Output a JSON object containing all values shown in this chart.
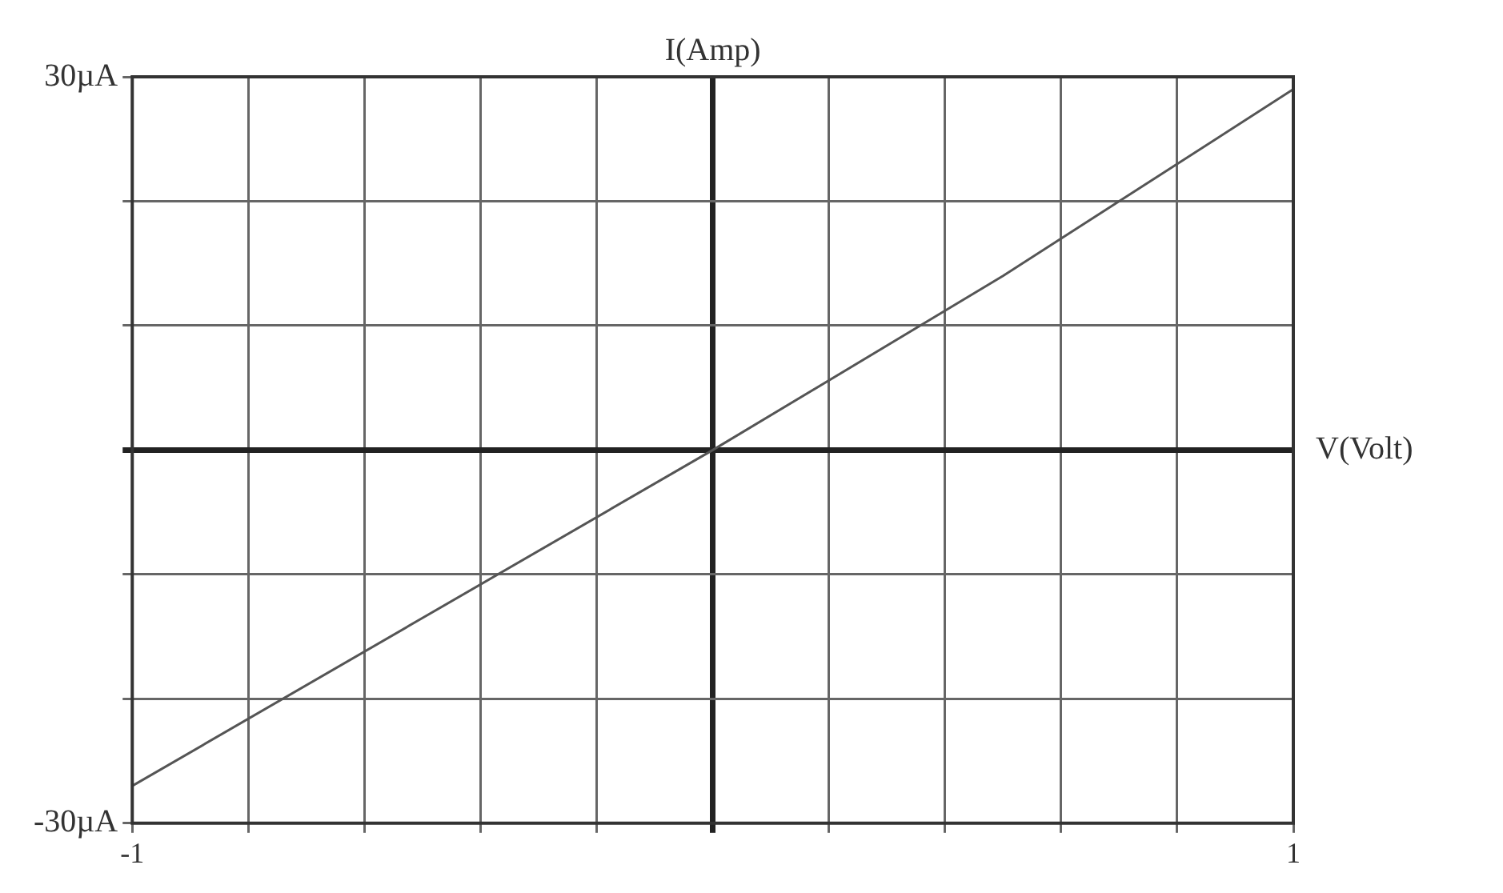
{
  "chart_data": {
    "type": "line",
    "xlabel": "V(Volt)",
    "ylabel": "I(Amp)",
    "x": [
      -1,
      -0.5,
      0,
      0.5,
      1
    ],
    "series": [
      {
        "color": "#555555",
        "values": [
          -27,
          -13.5,
          0,
          14,
          29
        ]
      }
    ],
    "xlim": [
      -1,
      1
    ],
    "xticks": [
      {
        "value": -1,
        "label": "-1"
      },
      {
        "value": -0.8,
        "label": null
      },
      {
        "value": -0.6,
        "label": null
      },
      {
        "value": -0.4,
        "label": null
      },
      {
        "value": -0.2,
        "label": null
      },
      {
        "value": 0,
        "label": null
      },
      {
        "value": 0.2,
        "label": null
      },
      {
        "value": 0.4,
        "label": null
      },
      {
        "value": 0.6,
        "label": null
      },
      {
        "value": 0.8,
        "label": null
      },
      {
        "value": 1,
        "label": "1"
      }
    ],
    "ylim": [
      -30,
      30
    ],
    "yticks": [
      {
        "value": -30,
        "label": "-30µA"
      },
      {
        "value": -20,
        "label": null
      },
      {
        "value": -10,
        "label": null
      },
      {
        "value": 0,
        "label": null
      },
      {
        "value": 10,
        "label": null
      },
      {
        "value": 20,
        "label": null
      },
      {
        "value": 30,
        "label": "30µA"
      }
    ],
    "grid": true,
    "legend": false,
    "marker": "none",
    "line_style": "solid"
  }
}
